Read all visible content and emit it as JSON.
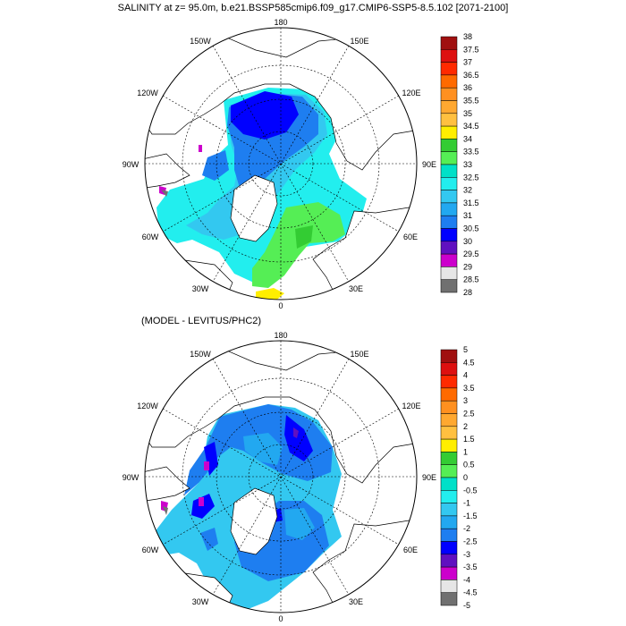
{
  "maps": [
    {
      "title": "SALINITY at z=  95.0m, b.e21.BSSP585cmip6.f09_g17.CMIP6-SSP5-8.5.102 [2071-2100]",
      "lon_labels": [
        "180",
        "150E",
        "120E",
        "90E",
        "60E",
        "30E",
        "0",
        "30W",
        "60W",
        "90W",
        "120W",
        "150W"
      ],
      "colorbar": {
        "labels": [
          "38",
          "37.5",
          "37",
          "36.5",
          "36",
          "35.5",
          "35",
          "34.5",
          "34",
          "33.5",
          "33",
          "32.5",
          "32",
          "31.5",
          "31",
          "30.5",
          "30",
          "29.5",
          "29",
          "28.5",
          "28"
        ],
        "colors": [
          "#a01010",
          "#dd1010",
          "#ff2a00",
          "#ff6a00",
          "#ff9020",
          "#ffa830",
          "#ffc040",
          "#ffee00",
          "#33cc33",
          "#55ee55",
          "#00e0c8",
          "#22eeee",
          "#33c8f0",
          "#22a8f0",
          "#1e7ef0",
          "#0000ff",
          "#6010c0",
          "#cc00cc",
          "#e6e6e6",
          "#707070"
        ]
      }
    },
    {
      "title": "(MODEL - LEVITUS/PHC2)",
      "lon_labels": [
        "180",
        "150E",
        "120E",
        "90E",
        "60E",
        "30E",
        "0",
        "30W",
        "60W",
        "90W",
        "120W",
        "150W"
      ],
      "colorbar": {
        "labels": [
          "5",
          "4.5",
          "4",
          "3.5",
          "3",
          "2.5",
          "2",
          "1.5",
          "1",
          "0.5",
          "0",
          "-0.5",
          "-1",
          "-1.5",
          "-2",
          "-2.5",
          "-3",
          "-3.5",
          "-4",
          "-4.5",
          "-5"
        ],
        "colors": [
          "#a01010",
          "#dd1010",
          "#ff2a00",
          "#ff6a00",
          "#ff9020",
          "#ffa830",
          "#ffc040",
          "#ffee00",
          "#33cc33",
          "#55ee55",
          "#00e0c8",
          "#22eeee",
          "#33c8f0",
          "#22a8f0",
          "#1e7ef0",
          "#0000ff",
          "#6010c0",
          "#cc00cc",
          "#e6e6e6",
          "#707070"
        ]
      }
    }
  ]
}
